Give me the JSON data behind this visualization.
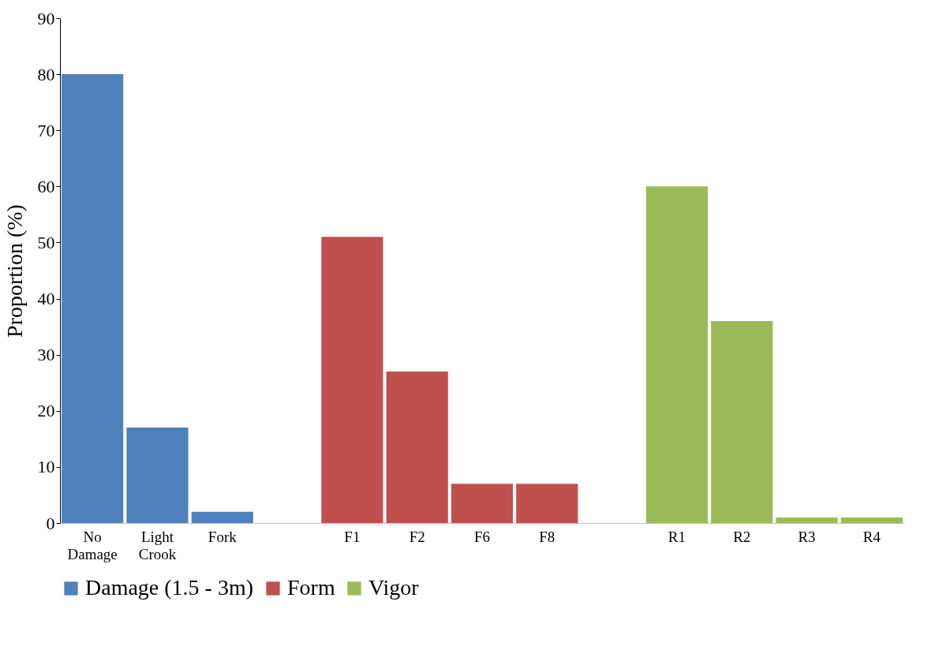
{
  "chart_data": {
    "type": "bar",
    "ylabel": "Proportion  (%)",
    "categories": [
      "No Damage",
      "Light Crook",
      "Fork",
      null,
      "F1",
      "F2",
      "F6",
      "F8",
      null,
      "R1",
      "R2",
      "R3",
      "R4"
    ],
    "series": [
      {
        "name": "Damage (1.5 - 3m)",
        "color": "#4f81bd",
        "values": [
          80,
          17,
          2,
          null,
          null,
          null,
          null,
          null,
          null,
          null,
          null,
          null,
          null
        ]
      },
      {
        "name": "Form",
        "color": "#c0504d",
        "values": [
          null,
          null,
          null,
          null,
          51,
          27,
          7,
          7,
          null,
          null,
          null,
          null,
          null
        ]
      },
      {
        "name": "Vigor",
        "color": "#9bbb59",
        "values": [
          null,
          null,
          null,
          null,
          null,
          null,
          null,
          null,
          null,
          60,
          36,
          1,
          1
        ]
      }
    ],
    "ylim": [
      0,
      90
    ],
    "yticks": [
      0,
      10,
      20,
      30,
      40,
      50,
      60,
      70,
      80,
      90
    ],
    "grid": false,
    "legend": "bottom"
  }
}
